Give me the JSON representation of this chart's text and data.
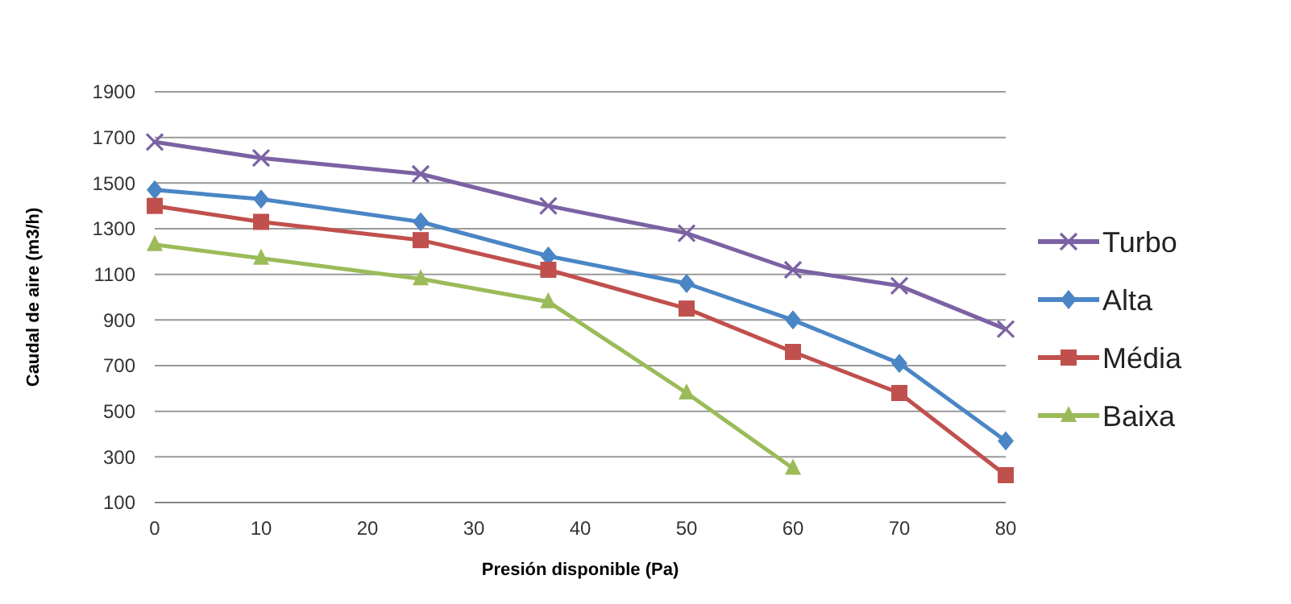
{
  "chart_data": {
    "type": "line",
    "xlabel": "Presión disponible (Pa)",
    "ylabel": "Caudal de aire (m3/h)",
    "xlim": [
      0,
      80
    ],
    "xticks": [
      0,
      10,
      20,
      30,
      40,
      50,
      60,
      70,
      80
    ],
    "ylim": [
      100,
      1900
    ],
    "yticks": [
      100,
      300,
      500,
      700,
      900,
      1100,
      1300,
      1500,
      1700,
      1900
    ],
    "grid": "y",
    "legend": "right",
    "series": [
      {
        "name": "Turbo",
        "color": "#7b62a3",
        "marker": "cross",
        "x": [
          0,
          10,
          25,
          37,
          50,
          60,
          70,
          80
        ],
        "values": [
          1680,
          1610,
          1540,
          1400,
          1280,
          1120,
          1050,
          860
        ]
      },
      {
        "name": "Alta",
        "color": "#4a86c5",
        "marker": "diamond",
        "x": [
          0,
          10,
          25,
          37,
          50,
          60,
          70,
          80
        ],
        "values": [
          1470,
          1430,
          1330,
          1180,
          1060,
          900,
          710,
          370
        ]
      },
      {
        "name": "Média",
        "color": "#c0504d",
        "marker": "square",
        "x": [
          0,
          10,
          25,
          37,
          50,
          60,
          70,
          80
        ],
        "values": [
          1400,
          1330,
          1250,
          1120,
          950,
          760,
          580,
          220
        ]
      },
      {
        "name": "Baixa",
        "color": "#9bbb59",
        "marker": "triangle",
        "x": [
          0,
          10,
          25,
          37,
          50,
          60
        ],
        "values": [
          1230,
          1170,
          1080,
          980,
          580,
          250
        ]
      }
    ]
  }
}
